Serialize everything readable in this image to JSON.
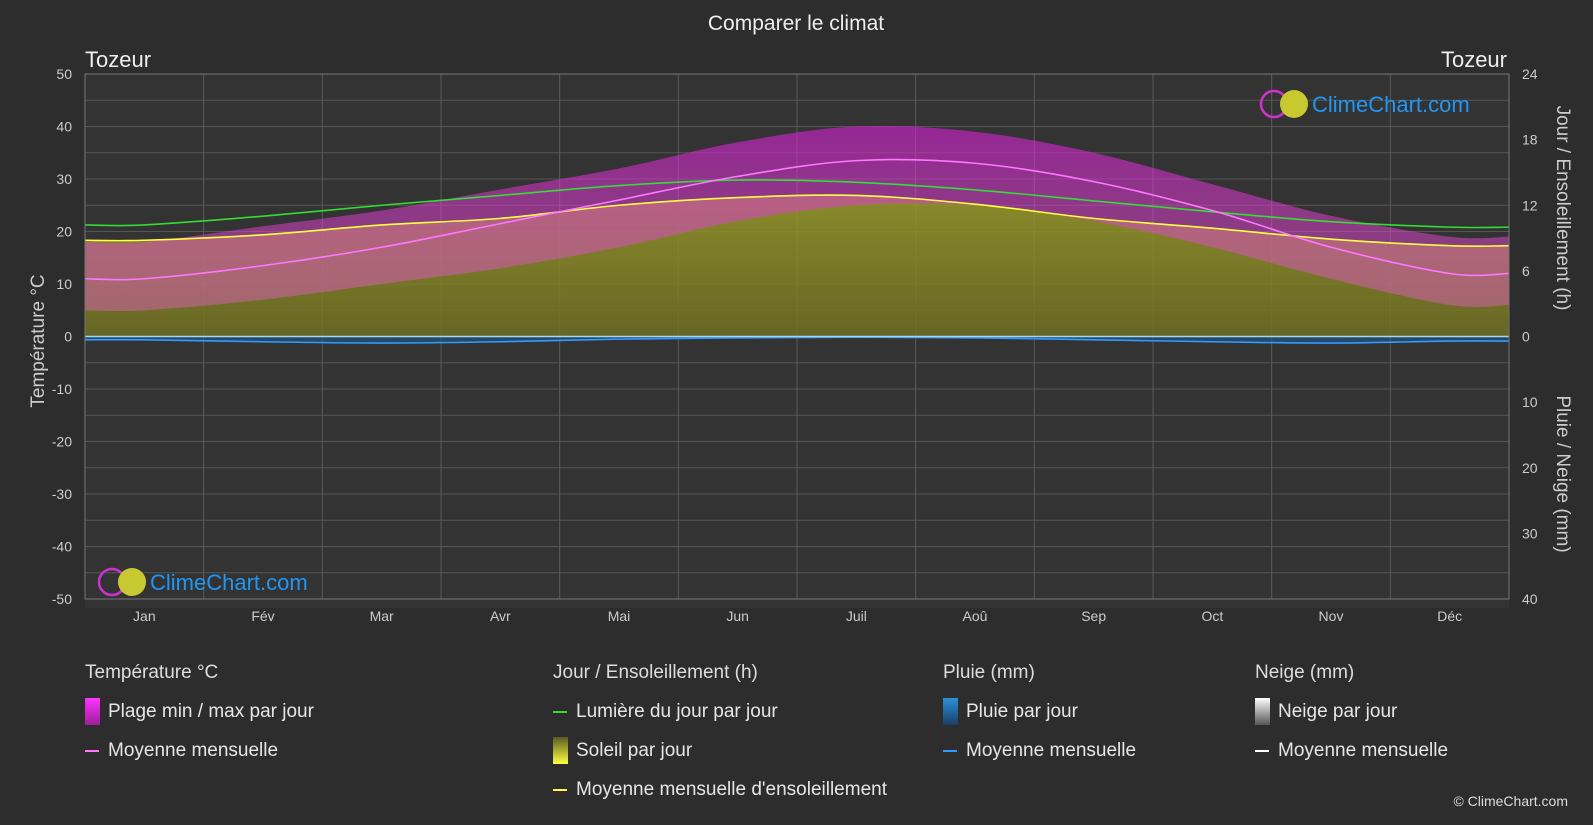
{
  "title": "Comparer le climat",
  "location_left": "Tozeur",
  "location_right": "Tozeur",
  "axis_left_label": "Température °C",
  "axis_right_top_label": "Jour / Ensoleillement (h)",
  "axis_right_bottom_label": "Pluie / Neige (mm)",
  "watermark": "ClimeChart.com",
  "credit": "© ClimeChart.com",
  "colors": {
    "background": "#2d2d2d",
    "temp_range": "#d81fd8",
    "temp_mean": "#ff77ff",
    "daylight": "#33dd33",
    "sunshine": "#a8a832",
    "sunshine_mean": "#ffff44",
    "rain": "#2b8fd8",
    "rain_mean": "#3399ff",
    "snow_mean": "#ffffff",
    "brand": "#2196f3"
  },
  "legend": {
    "temperature": {
      "title": "Température °C",
      "range": "Plage min / max par jour",
      "mean": "Moyenne mensuelle"
    },
    "sun": {
      "title": "Jour / Ensoleillement (h)",
      "daylight": "Lumière du jour par jour",
      "sunshine": "Soleil par jour",
      "sunshine_mean": "Moyenne mensuelle d'ensoleillement"
    },
    "rain": {
      "title": "Pluie (mm)",
      "daily": "Pluie par jour",
      "mean": "Moyenne mensuelle"
    },
    "snow": {
      "title": "Neige (mm)",
      "daily": "Neige par jour",
      "mean": "Moyenne mensuelle"
    }
  },
  "chart_data": {
    "type": "area",
    "months": [
      "Jan",
      "Fév",
      "Mar",
      "Avr",
      "Mai",
      "Jun",
      "Juil",
      "Aoû",
      "Sep",
      "Oct",
      "Nov",
      "Déc"
    ],
    "temp_axis": {
      "min": -50,
      "max": 50,
      "ticks": [
        50,
        40,
        30,
        20,
        10,
        0,
        -10,
        -20,
        -30,
        -40,
        -50
      ]
    },
    "sun_axis": {
      "min": 0,
      "max": 24,
      "ticks": [
        24,
        18,
        12,
        6,
        0
      ]
    },
    "rain_axis": {
      "min": 0,
      "max": 40,
      "ticks": [
        0,
        10,
        20,
        30,
        40
      ]
    },
    "series": [
      {
        "name": "Plage min / max par jour (min)",
        "values": [
          5,
          7,
          10,
          13,
          17,
          22,
          25,
          25,
          22,
          17,
          11,
          6
        ]
      },
      {
        "name": "Plage min / max par jour (max)",
        "values": [
          18,
          21,
          24,
          28,
          32,
          37,
          40,
          39,
          35,
          29,
          23,
          19
        ]
      },
      {
        "name": "Moyenne mensuelle (température)",
        "values": [
          11,
          13.5,
          17,
          21.5,
          26,
          30.5,
          33.5,
          33,
          29.5,
          24,
          17,
          12
        ]
      },
      {
        "name": "Lumière du jour par jour",
        "values": [
          10.2,
          11,
          12,
          12.9,
          13.8,
          14.3,
          14.1,
          13.4,
          12.4,
          11.4,
          10.5,
          10
        ]
      },
      {
        "name": "Soleil par jour",
        "values": [
          8.8,
          9.3,
          10.2,
          10.8,
          12,
          12.7,
          12.9,
          12.1,
          10.8,
          9.9,
          8.9,
          8.3
        ]
      },
      {
        "name": "Moyenne mensuelle d'ensoleillement",
        "values": [
          8.8,
          9.3,
          10.2,
          10.8,
          12,
          12.7,
          12.9,
          12.1,
          10.8,
          9.9,
          8.9,
          8.3
        ]
      },
      {
        "name": "Moyenne mensuelle (pluie)",
        "values": [
          0.5,
          0.8,
          1,
          0.8,
          0.4,
          0.2,
          0.1,
          0.2,
          0.5,
          0.8,
          1,
          0.7
        ]
      },
      {
        "name": "Moyenne mensuelle (neige)",
        "values": [
          0,
          0,
          0,
          0,
          0,
          0,
          0,
          0,
          0,
          0,
          0,
          0
        ]
      }
    ]
  }
}
